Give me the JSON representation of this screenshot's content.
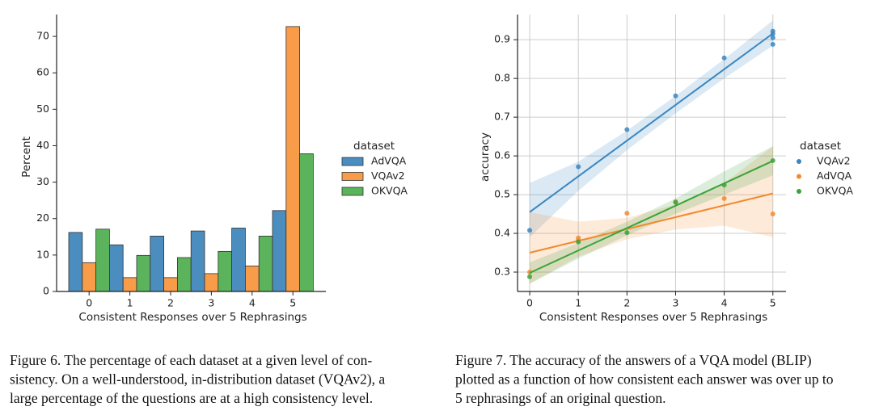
{
  "chart_data": [
    {
      "type": "bar",
      "x_label": "Consistent Responses over 5 Rephrasings",
      "y_label": "Percent",
      "legend_title": "dataset",
      "categories": [
        "0",
        "1",
        "2",
        "3",
        "4",
        "5"
      ],
      "series": [
        {
          "name": "AdVQA",
          "color": "#4c8dc0",
          "values": [
            16.2,
            12.8,
            15.2,
            16.6,
            17.4,
            22.2
          ]
        },
        {
          "name": "VQAv2",
          "color": "#f89c4a",
          "values": [
            7.9,
            3.8,
            3.8,
            4.9,
            7.0,
            72.7
          ]
        },
        {
          "name": "OKVQA",
          "color": "#5bb35b",
          "values": [
            17.1,
            9.9,
            9.3,
            11.0,
            15.2,
            37.8
          ]
        }
      ],
      "ylim": [
        0,
        76
      ],
      "yticks": [
        0,
        10,
        20,
        30,
        40,
        50,
        60,
        70
      ],
      "grid": false,
      "caption": [
        "Figure 6. The percentage of each dataset at a given level of con-",
        "sistency. On a well-understood, in-distribution dataset (VQAv2), a",
        "large percentage of the questions are at a high consistency level."
      ]
    },
    {
      "type": "scatter",
      "x_label": "Consistent Responses over 5 Rephrasings",
      "y_label": "accuracy",
      "legend_title": "dataset",
      "series": [
        {
          "name": "VQAv2",
          "color": "#3a86c0",
          "x": [
            0,
            1,
            2,
            3,
            4,
            5,
            5,
            5,
            5
          ],
          "values": [
            0.408,
            0.572,
            0.668,
            0.755,
            0.853,
            0.922,
            0.915,
            0.905,
            0.888
          ],
          "fit_x": [
            0,
            5
          ],
          "fit_values": [
            0.455,
            0.916
          ],
          "band_x": [
            0,
            1,
            2,
            3,
            4,
            5
          ],
          "band_lower": [
            0.39,
            0.51,
            0.615,
            0.71,
            0.8,
            0.885
          ],
          "band_upper": [
            0.53,
            0.585,
            0.665,
            0.755,
            0.85,
            0.95
          ]
        },
        {
          "name": "AdVQA",
          "color": "#f28a2e",
          "x": [
            0,
            1,
            1,
            2,
            3,
            4,
            5
          ],
          "values": [
            0.3,
            0.388,
            0.382,
            0.452,
            0.482,
            0.49,
            0.45
          ],
          "fit_x": [
            0,
            5
          ],
          "fit_values": [
            0.35,
            0.503
          ],
          "band_x": [
            0,
            1,
            2,
            3,
            4,
            5
          ],
          "band_lower": [
            0.27,
            0.34,
            0.385,
            0.41,
            0.42,
            0.39
          ],
          "band_upper": [
            0.455,
            0.43,
            0.44,
            0.475,
            0.53,
            0.625
          ]
        },
        {
          "name": "OKVQA",
          "color": "#3aa33a",
          "x": [
            0,
            1,
            2,
            3,
            4,
            5
          ],
          "values": [
            0.288,
            0.378,
            0.402,
            0.48,
            0.525,
            0.588
          ],
          "fit_x": [
            0,
            5
          ],
          "fit_values": [
            0.298,
            0.587
          ],
          "band_x": [
            0,
            1,
            2,
            3,
            4,
            5
          ],
          "band_lower": [
            0.27,
            0.335,
            0.395,
            0.45,
            0.5,
            0.55
          ],
          "band_upper": [
            0.325,
            0.375,
            0.43,
            0.49,
            0.56,
            0.625
          ]
        }
      ],
      "xlim": [
        -0.25,
        5.27
      ],
      "xticks": [
        0,
        1,
        2,
        3,
        4,
        5
      ],
      "ylim": [
        0.25,
        0.965
      ],
      "yticks": [
        0.3,
        0.4,
        0.5,
        0.6,
        0.7,
        0.8,
        0.9
      ],
      "grid": true,
      "caption": [
        "Figure 7. The accuracy of the answers of a VQA model (BLIP)",
        "plotted as a function of how consistent each answer was over up to",
        "5 rephrasings of an original question."
      ]
    }
  ]
}
